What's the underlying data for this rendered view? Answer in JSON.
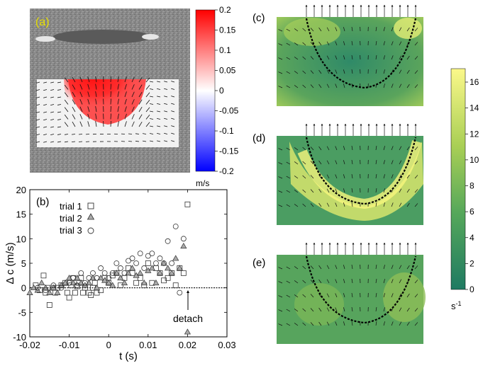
{
  "panel_labels": {
    "a": "(a)",
    "b": "(b)",
    "c": "(c)",
    "d": "(d)",
    "e": "(e)"
  },
  "colors": {
    "accent_yellow": "#e8e000",
    "red": "#ff0000",
    "blue": "#0000ff",
    "field_green": "#3f9a6d",
    "field_yellow": "#f8f67d"
  },
  "velocity_colorbar": {
    "ticks": [
      "0.2",
      "0.15",
      "0.1",
      "0.05",
      "0",
      "-0.05",
      "-0.1",
      "-0.15",
      "-0.2"
    ],
    "unit": "m/s"
  },
  "shear_colorbar": {
    "ticks": [
      "16",
      "14",
      "12",
      "10",
      "8",
      "6",
      "4",
      "2",
      "0"
    ],
    "unit_base": "s",
    "unit_exp": "-1"
  },
  "chart_data": {
    "type": "scatter",
    "xlabel": "t (s)",
    "ylabel": "Δ c (m/s)",
    "xlim": [
      -0.02,
      0.03
    ],
    "ylim": [
      -10,
      20
    ],
    "xticks": [
      "-0.02",
      "-0.01",
      "0",
      "0.01",
      "0.02",
      "0.03"
    ],
    "yticks": [
      "20",
      "15",
      "10",
      "5",
      "0",
      "-5",
      "-10"
    ],
    "annotation": "detach",
    "annotation_x": 0.0195,
    "series": [
      {
        "name": "trial 1",
        "marker": "square",
        "x": [
          -0.0185,
          -0.0175,
          -0.0165,
          -0.016,
          -0.0155,
          -0.015,
          -0.014,
          -0.0135,
          -0.013,
          -0.012,
          -0.011,
          -0.0105,
          -0.01,
          -0.0095,
          -0.009,
          -0.0085,
          -0.008,
          -0.0075,
          -0.007,
          -0.0065,
          -0.006,
          -0.005,
          -0.0045,
          -0.004,
          -0.0035,
          -0.003,
          -0.002,
          -0.001,
          0.0,
          0.001,
          0.002,
          0.003,
          0.004,
          0.005,
          0.006,
          0.007,
          0.008,
          0.009,
          0.01,
          0.011,
          0.012,
          0.013,
          0.014,
          0.015,
          0.016,
          0.017,
          0.018,
          0.019,
          0.02
        ],
        "y": [
          0.5,
          -0.5,
          2.5,
          -1,
          0,
          -3.5,
          0,
          -1,
          0,
          0.5,
          1,
          -1,
          -2,
          0.5,
          2,
          -1,
          0.3,
          1,
          2,
          -1,
          0,
          -1,
          -1.5,
          0,
          1,
          -1,
          -0.5,
          2,
          1,
          2.5,
          3,
          0.5,
          2,
          4,
          3,
          1,
          2,
          0.5,
          5,
          1,
          4,
          3,
          1.5,
          2,
          3,
          0.5,
          4,
          3,
          17
        ]
      },
      {
        "name": "trial 2",
        "marker": "triangle",
        "x": [
          -0.02,
          -0.019,
          -0.018,
          -0.017,
          -0.016,
          -0.015,
          -0.014,
          -0.013,
          -0.012,
          -0.011,
          -0.01,
          -0.009,
          -0.008,
          -0.007,
          -0.006,
          -0.005,
          -0.004,
          -0.003,
          -0.002,
          -0.001,
          0.0,
          0.001,
          0.002,
          0.003,
          0.004,
          0.005,
          0.006,
          0.007,
          0.008,
          0.009,
          0.01,
          0.011,
          0.012,
          0.013,
          0.014,
          0.015,
          0.016,
          0.017,
          0.018,
          0.019,
          0.02
        ],
        "y": [
          -1,
          0,
          -0.5,
          1,
          0,
          -1,
          0,
          -1,
          0.5,
          1,
          2,
          1,
          2,
          1,
          0.5,
          1,
          2,
          0,
          2,
          1.5,
          1,
          0.5,
          3,
          2,
          1,
          3,
          4,
          2.5,
          3,
          1,
          3.5,
          4,
          1,
          3,
          5,
          4,
          3,
          6,
          4,
          8.5,
          -9
        ]
      },
      {
        "name": "trial 3",
        "marker": "circle",
        "x": [
          -0.018,
          -0.016,
          -0.014,
          -0.012,
          -0.01,
          -0.009,
          -0.008,
          -0.007,
          -0.006,
          -0.005,
          -0.004,
          -0.003,
          -0.002,
          -0.001,
          0.0,
          0.001,
          0.002,
          0.003,
          0.004,
          0.005,
          0.006,
          0.007,
          0.008,
          0.009,
          0.01,
          0.011,
          0.012,
          0.013,
          0.014,
          0.015,
          0.016,
          0.017,
          0.018,
          0.019
        ],
        "y": [
          0,
          -0.5,
          0.5,
          0,
          1,
          2,
          0.5,
          3,
          1,
          2,
          3,
          2,
          4,
          3,
          2,
          3,
          5,
          4,
          3,
          5.5,
          6,
          5,
          7,
          4,
          6.5,
          7,
          5,
          6,
          5,
          9.5,
          5,
          12.5,
          -1,
          10
        ]
      }
    ]
  }
}
